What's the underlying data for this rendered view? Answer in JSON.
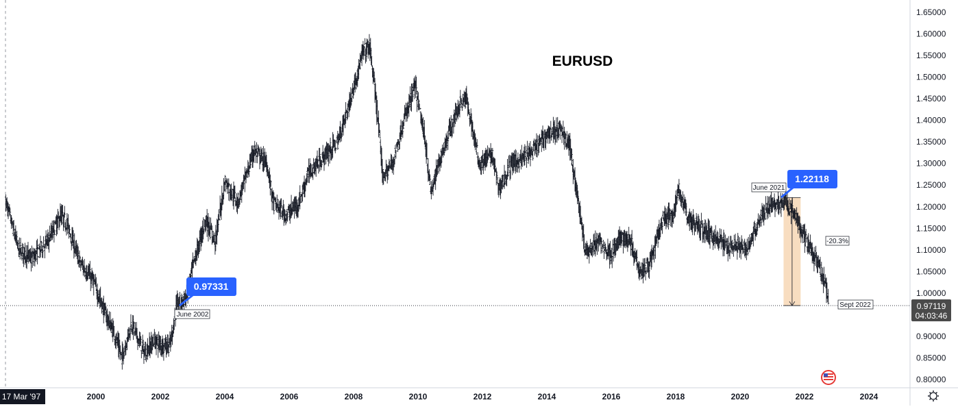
{
  "colors": {
    "bars": "#131722",
    "callout": "#2962ff",
    "range_fill": "#f7d7b5",
    "price_tag_bg": "#4a4a4a",
    "axis_line": "#d1d4dc",
    "flag_ring": "#e53935"
  },
  "icons": [
    "settings-icon",
    "us-flag-icon"
  ],
  "chart_data": {
    "type": "ohlc",
    "title": "EURUSD",
    "xlabel": "",
    "ylabel": "",
    "y_ticks": [
      "1.65000",
      "1.60000",
      "1.55000",
      "1.50000",
      "1.45000",
      "1.40000",
      "1.35000",
      "1.30000",
      "1.25000",
      "1.20000",
      "1.15000",
      "1.10000",
      "1.05000",
      "1.00000",
      "0.95000",
      "0.90000",
      "0.85000",
      "0.80000"
    ],
    "x_ticks": [
      "2000",
      "2002",
      "2004",
      "2006",
      "2008",
      "2010",
      "2012",
      "2014",
      "2016",
      "2018",
      "2020",
      "2022",
      "2024"
    ],
    "ylim": [
      0.79,
      1.66
    ],
    "xlim": [
      1997.2,
      2025.3
    ],
    "current_price": "0.97119",
    "countdown": "04:03:46",
    "crosshair_date": "17 Mar '97",
    "grid": false,
    "anchors": [
      [
        1997.2,
        1.21
      ],
      [
        1997.6,
        1.1
      ],
      [
        1998.0,
        1.08
      ],
      [
        1998.5,
        1.12
      ],
      [
        1998.9,
        1.18
      ],
      [
        1999.1,
        1.16
      ],
      [
        1999.5,
        1.07
      ],
      [
        1999.9,
        1.03
      ],
      [
        2000.3,
        0.95
      ],
      [
        2000.6,
        0.9
      ],
      [
        2000.8,
        0.85
      ],
      [
        2001.1,
        0.93
      ],
      [
        2001.5,
        0.86
      ],
      [
        2001.8,
        0.89
      ],
      [
        2002.0,
        0.88
      ],
      [
        2002.3,
        0.88
      ],
      [
        2002.5,
        0.97
      ],
      [
        2002.8,
        0.99
      ],
      [
        2003.0,
        1.06
      ],
      [
        2003.4,
        1.17
      ],
      [
        2003.7,
        1.12
      ],
      [
        2004.0,
        1.26
      ],
      [
        2004.4,
        1.21
      ],
      [
        2004.9,
        1.33
      ],
      [
        2005.3,
        1.3
      ],
      [
        2005.5,
        1.21
      ],
      [
        2005.9,
        1.18
      ],
      [
        2006.3,
        1.21
      ],
      [
        2006.6,
        1.28
      ],
      [
        2007.0,
        1.31
      ],
      [
        2007.5,
        1.35
      ],
      [
        2007.9,
        1.45
      ],
      [
        2008.3,
        1.56
      ],
      [
        2008.5,
        1.57
      ],
      [
        2008.7,
        1.44
      ],
      [
        2008.9,
        1.27
      ],
      [
        2009.2,
        1.3
      ],
      [
        2009.6,
        1.41
      ],
      [
        2009.9,
        1.48
      ],
      [
        2010.2,
        1.36
      ],
      [
        2010.4,
        1.23
      ],
      [
        2010.6,
        1.29
      ],
      [
        2010.9,
        1.36
      ],
      [
        2011.3,
        1.44
      ],
      [
        2011.5,
        1.45
      ],
      [
        2011.9,
        1.3
      ],
      [
        2012.3,
        1.32
      ],
      [
        2012.5,
        1.24
      ],
      [
        2012.9,
        1.3
      ],
      [
        2013.2,
        1.31
      ],
      [
        2013.6,
        1.33
      ],
      [
        2014.0,
        1.37
      ],
      [
        2014.4,
        1.38
      ],
      [
        2014.7,
        1.34
      ],
      [
        2015.0,
        1.2
      ],
      [
        2015.2,
        1.09
      ],
      [
        2015.6,
        1.12
      ],
      [
        2016.0,
        1.09
      ],
      [
        2016.3,
        1.13
      ],
      [
        2016.6,
        1.12
      ],
      [
        2016.9,
        1.05
      ],
      [
        2017.2,
        1.07
      ],
      [
        2017.6,
        1.17
      ],
      [
        2017.9,
        1.18
      ],
      [
        2018.1,
        1.24
      ],
      [
        2018.4,
        1.17
      ],
      [
        2018.8,
        1.15
      ],
      [
        2019.2,
        1.13
      ],
      [
        2019.6,
        1.11
      ],
      [
        2019.9,
        1.11
      ],
      [
        2020.2,
        1.1
      ],
      [
        2020.6,
        1.17
      ],
      [
        2020.9,
        1.2
      ],
      [
        2021.1,
        1.21
      ],
      [
        2021.4,
        1.21
      ],
      [
        2021.7,
        1.18
      ],
      [
        2021.9,
        1.14
      ],
      [
        2022.2,
        1.1
      ],
      [
        2022.5,
        1.05
      ],
      [
        2022.7,
        1.0
      ],
      [
        2022.75,
        0.97
      ]
    ],
    "annotations": {
      "callout_low": {
        "value": "0.97331",
        "label": "June 2002"
      },
      "callout_high": {
        "value": "1.22118",
        "label": "June 2021"
      },
      "range_pct": "-20.3%",
      "end_label": "Sept 2022"
    }
  }
}
